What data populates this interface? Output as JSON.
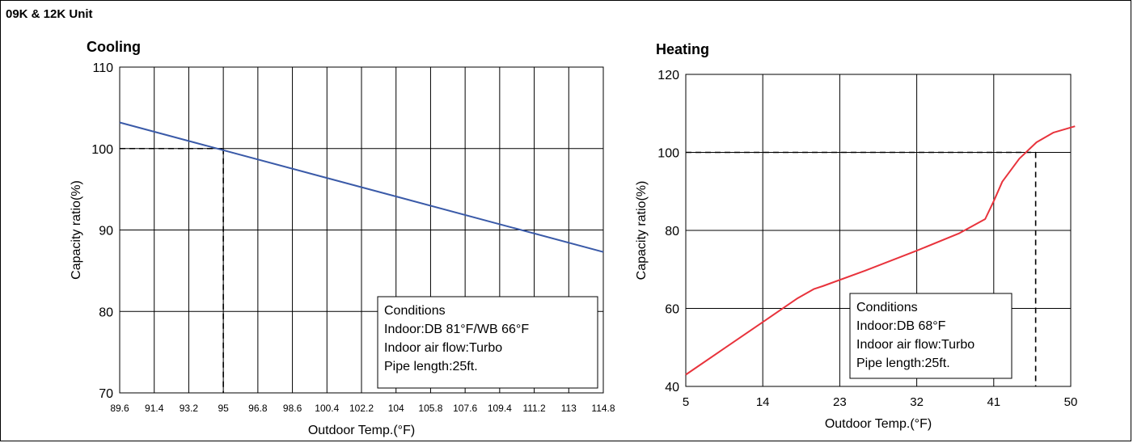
{
  "page_title": "09K & 12K Unit",
  "colors": {
    "cooling_line": "#3a5aa8",
    "heating_line": "#e8333c",
    "grid": "#000000"
  },
  "chart_data": [
    {
      "type": "line",
      "title": "Cooling",
      "xlabel": "Outdoor Temp.(°F)",
      "ylabel": "Capacity ratio(%)",
      "xticks": [
        "89.6",
        "91.4",
        "93.2",
        "95",
        "96.8",
        "98.6",
        "100.4",
        "102.2",
        "104",
        "105.8",
        "107.6",
        "109.4",
        "111.2",
        "113",
        "114.8"
      ],
      "xlim": [
        89.6,
        114.8
      ],
      "ylim": [
        70,
        110
      ],
      "yticks": [
        "70",
        "80",
        "90",
        "100",
        "110"
      ],
      "grid": true,
      "series": [
        {
          "x": [
            89.6,
            114.8
          ],
          "y": [
            103.2,
            87.3
          ]
        }
      ],
      "reference": {
        "x": 95,
        "y": 100
      },
      "conditions": [
        "Conditions",
        "Indoor:DB 81°F/WB 66°F",
        "Indoor air flow:Turbo",
        "Pipe length:25ft."
      ]
    },
    {
      "type": "line",
      "title": "Heating",
      "xlabel": "Outdoor Temp.(°F)",
      "ylabel": "Capacity ratio(%)",
      "xticks": [
        "5",
        "14",
        "23",
        "32",
        "41",
        "50"
      ],
      "xlim": [
        5,
        50
      ],
      "ylim": [
        40,
        120
      ],
      "yticks": [
        "40",
        "60",
        "80",
        "100",
        "120"
      ],
      "grid": true,
      "series": [
        {
          "x": [
            5,
            9,
            14,
            18,
            20,
            21,
            26,
            32,
            37,
            40,
            41,
            42,
            44,
            46,
            48,
            50.5
          ],
          "y": [
            43,
            49,
            56.5,
            62.5,
            65,
            65.7,
            69.7,
            74.8,
            79.3,
            82.9,
            87.5,
            92.5,
            98.4,
            102.6,
            105.1,
            106.7
          ]
        }
      ],
      "reference": {
        "x": 45.9,
        "y": 100
      },
      "conditions": [
        "Conditions",
        "Indoor:DB 68°F",
        "Indoor air flow:Turbo",
        "Pipe length:25ft."
      ]
    }
  ]
}
